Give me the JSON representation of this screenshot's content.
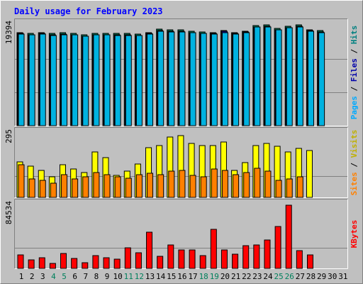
{
  "chart_data": {
    "type": "bar",
    "title": "Daily usage for February 2023",
    "days": [
      "1",
      "2",
      "3",
      "4",
      "5",
      "6",
      "7",
      "8",
      "9",
      "10",
      "11",
      "12",
      "13",
      "14",
      "15",
      "16",
      "17",
      "18",
      "19",
      "20",
      "21",
      "22",
      "23",
      "24",
      "25",
      "26",
      "27",
      "28",
      "29",
      "30",
      "31"
    ],
    "weekend_days": [
      4,
      5,
      11,
      12,
      18,
      19,
      25,
      26
    ],
    "panels": [
      {
        "id": "hits-pages-files",
        "ymax_label": "19394",
        "ymax": 19394,
        "axis_labels": [
          {
            "text": "Pages",
            "color": "#00aaff"
          },
          {
            "text": " / ",
            "color": "#000000"
          },
          {
            "text": "Files",
            "color": "#0000aa"
          },
          {
            "text": " / ",
            "color": "#000000"
          },
          {
            "text": "Hits",
            "color": "#008080"
          }
        ],
        "series": [
          {
            "name": "Hits",
            "color": "#00805c",
            "offset": 0,
            "values": [
              17900,
              17750,
              17900,
              17700,
              17900,
              17800,
              17450,
              17700,
              17800,
              17750,
              17700,
              17600,
              17950,
              18600,
              18400,
              18400,
              18150,
              18000,
              17950,
              18300,
              17950,
              18200,
              19300,
              19350,
              18750,
              19150,
              19350,
              18500,
              18300,
              0,
              0
            ]
          },
          {
            "name": "Files",
            "color": "#0000aa",
            "offset": 1,
            "values": [
              17700,
              17500,
              17700,
              17450,
              17600,
              17550,
              17250,
              17500,
              17550,
              17450,
              17450,
              17350,
              17750,
              18350,
              18150,
              18150,
              17950,
              17800,
              17750,
              18100,
              17750,
              18000,
              19050,
              19100,
              18500,
              18900,
              19100,
              18250,
              18050,
              0,
              0
            ]
          },
          {
            "name": "Pages",
            "color": "#00b2e0",
            "offset": 2,
            "values": [
              17600,
              17450,
              17600,
              17350,
              17550,
              17500,
              17150,
              17450,
              17500,
              17400,
              17350,
              17300,
              17650,
              18200,
              18050,
              18050,
              17850,
              17700,
              17650,
              17950,
              17650,
              17900,
              18950,
              19000,
              18400,
              18800,
              19000,
              18150,
              17950,
              0,
              0
            ]
          }
        ]
      },
      {
        "id": "visits-sites",
        "ymax_label": "295",
        "ymax": 295,
        "axis_labels": [
          {
            "text": "Sites",
            "color": "#ff8000"
          },
          {
            "text": " / ",
            "color": "#000000"
          },
          {
            "text": "Visits",
            "color": "#c0b000"
          }
        ],
        "series": [
          {
            "name": "Visits",
            "color": "#ffff00",
            "offset": 0,
            "values": [
              165,
              145,
              125,
              95,
              150,
              130,
              115,
              210,
              185,
              100,
              120,
              155,
              230,
              240,
              280,
              285,
              250,
              240,
              240,
              255,
              125,
              160,
              240,
              250,
              235,
              210,
              225,
              215,
              0,
              0,
              0
            ]
          },
          {
            "name": "Sites",
            "color": "#ff8000",
            "offset": 2,
            "values": [
              150,
              85,
              80,
              65,
              105,
              85,
              95,
              115,
              105,
              95,
              90,
              105,
              110,
              105,
              120,
              125,
              100,
              95,
              130,
              125,
              105,
              115,
              135,
              120,
              80,
              85,
              95,
              0,
              0,
              0,
              0
            ]
          }
        ]
      },
      {
        "id": "kbytes",
        "ymax_label": "84534",
        "ymax": 84534,
        "axis_labels": [
          {
            "text": "KBytes",
            "color": "#ff0000"
          }
        ],
        "series": [
          {
            "name": "KBytes",
            "color": "#ff0000",
            "offset": 1,
            "values": [
              18500,
              11000,
              14500,
              7000,
              19500,
              13000,
              7500,
              17500,
              14000,
              12500,
              28000,
              21000,
              48000,
              16500,
              31500,
              25000,
              25000,
              17000,
              52500,
              25000,
              19000,
              30500,
              31500,
              38000,
              56000,
              84534,
              24000,
              18000,
              0,
              0,
              0
            ]
          }
        ]
      }
    ]
  }
}
